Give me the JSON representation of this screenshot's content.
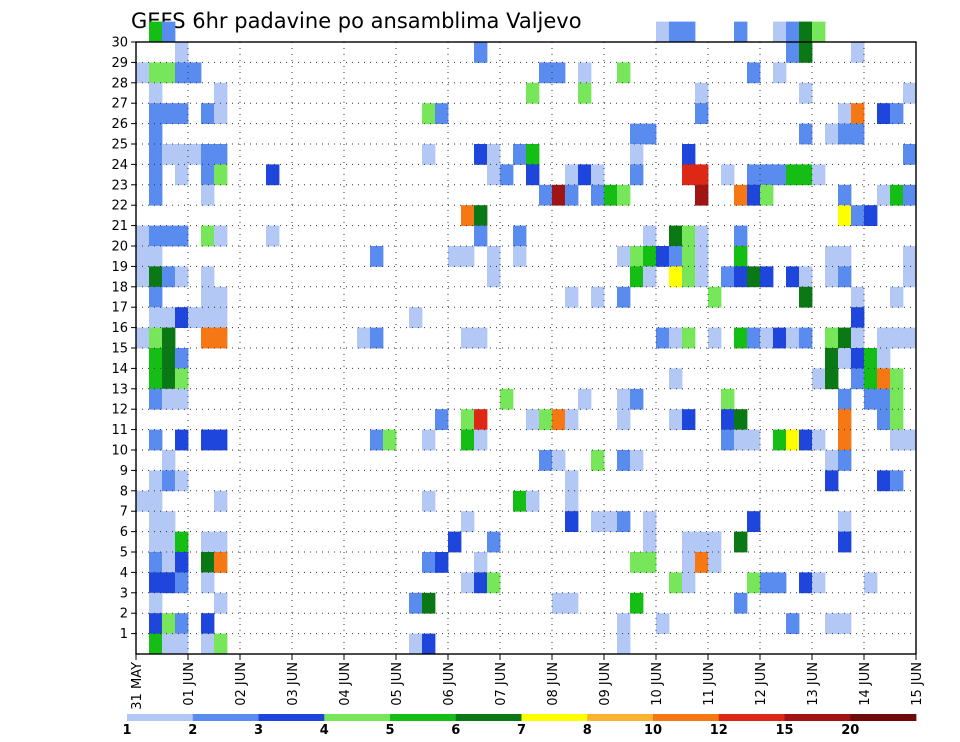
{
  "chart_data": {
    "type": "heatmap",
    "title": "GEFS 6hr padavine po ansamblima Valjevo",
    "xlabel": "",
    "ylabel": "",
    "x_tick_labels": [
      "31 MAY",
      "01 JUN",
      "02 JUN",
      "03 JUN",
      "04 JUN",
      "05 JUN",
      "06 JUN",
      "07 JUN",
      "08 JUN",
      "09 JUN",
      "10 JUN",
      "11 JUN",
      "12 JUN",
      "13 JUN",
      "14 JUN",
      "15 JUN"
    ],
    "y_range": [
      0,
      30
    ],
    "y_ticks": [
      1,
      2,
      3,
      4,
      5,
      6,
      7,
      8,
      9,
      10,
      11,
      12,
      13,
      14,
      15,
      16,
      17,
      18,
      19,
      20,
      21,
      22,
      23,
      24,
      25,
      26,
      27,
      28,
      29,
      30
    ],
    "x_steps_per_day": 4,
    "grid": true,
    "colorbar": {
      "labels": [
        "1",
        "2",
        "3",
        "4",
        "5",
        "6",
        "7",
        "8",
        "10",
        "12",
        "15",
        "20"
      ],
      "colors": [
        "#b4c8f5",
        "#5a8cf0",
        "#1e46dc",
        "#78e65a",
        "#14be14",
        "#0a7814",
        "#ffff00",
        "#fab432",
        "#f57814",
        "#dc2814",
        "#a01414",
        "#6e0a0a"
      ]
    },
    "cells": [
      [
        30,
        1,
        4
      ],
      [
        30,
        2,
        1
      ],
      [
        30,
        40,
        0
      ],
      [
        30,
        41,
        1
      ],
      [
        30,
        42,
        1
      ],
      [
        30,
        46,
        1
      ],
      [
        30,
        49,
        0
      ],
      [
        30,
        50,
        1
      ],
      [
        30,
        51,
        5
      ],
      [
        30,
        52,
        3
      ],
      [
        29,
        3,
        0
      ],
      [
        29,
        26,
        1
      ],
      [
        29,
        50,
        1
      ],
      [
        29,
        51,
        5
      ],
      [
        29,
        55,
        0
      ],
      [
        28,
        0,
        0
      ],
      [
        28,
        1,
        3
      ],
      [
        28,
        2,
        3
      ],
      [
        28,
        3,
        1
      ],
      [
        28,
        4,
        1
      ],
      [
        28,
        31,
        1
      ],
      [
        28,
        32,
        1
      ],
      [
        28,
        34,
        0
      ],
      [
        28,
        37,
        3
      ],
      [
        28,
        47,
        1
      ],
      [
        28,
        49,
        0
      ],
      [
        27,
        1,
        0
      ],
      [
        27,
        6,
        0
      ],
      [
        27,
        30,
        3
      ],
      [
        27,
        34,
        3
      ],
      [
        27,
        43,
        0
      ],
      [
        27,
        51,
        0
      ],
      [
        27,
        59,
        0
      ],
      [
        26,
        1,
        1
      ],
      [
        26,
        2,
        1
      ],
      [
        26,
        3,
        1
      ],
      [
        26,
        5,
        1
      ],
      [
        26,
        6,
        0
      ],
      [
        26,
        22,
        3
      ],
      [
        26,
        23,
        1
      ],
      [
        26,
        43,
        1
      ],
      [
        26,
        54,
        0
      ],
      [
        26,
        55,
        8
      ],
      [
        26,
        57,
        2
      ],
      [
        26,
        58,
        1
      ],
      [
        25,
        1,
        1
      ],
      [
        25,
        38,
        1
      ],
      [
        25,
        39,
        1
      ],
      [
        25,
        51,
        1
      ],
      [
        25,
        53,
        0
      ],
      [
        25,
        54,
        1
      ],
      [
        25,
        55,
        1
      ],
      [
        24,
        1,
        1
      ],
      [
        24,
        2,
        0
      ],
      [
        24,
        3,
        0
      ],
      [
        24,
        4,
        0
      ],
      [
        24,
        5,
        1
      ],
      [
        24,
        6,
        1
      ],
      [
        24,
        22,
        0
      ],
      [
        24,
        26,
        2
      ],
      [
        24,
        27,
        0
      ],
      [
        24,
        29,
        1
      ],
      [
        24,
        30,
        4
      ],
      [
        24,
        38,
        0
      ],
      [
        24,
        42,
        2
      ],
      [
        24,
        59,
        1
      ],
      [
        23,
        1,
        1
      ],
      [
        23,
        3,
        0
      ],
      [
        23,
        5,
        1
      ],
      [
        23,
        6,
        3
      ],
      [
        23,
        10,
        2
      ],
      [
        23,
        27,
        0
      ],
      [
        23,
        28,
        1
      ],
      [
        23,
        30,
        2
      ],
      [
        23,
        33,
        0
      ],
      [
        23,
        34,
        2
      ],
      [
        23,
        35,
        0
      ],
      [
        23,
        38,
        1
      ],
      [
        23,
        42,
        9
      ],
      [
        23,
        43,
        9
      ],
      [
        23,
        45,
        0
      ],
      [
        23,
        47,
        1
      ],
      [
        23,
        48,
        1
      ],
      [
        23,
        49,
        1
      ],
      [
        23,
        50,
        4
      ],
      [
        23,
        51,
        4
      ],
      [
        23,
        52,
        0
      ],
      [
        22,
        1,
        1
      ],
      [
        22,
        5,
        0
      ],
      [
        22,
        31,
        1
      ],
      [
        22,
        32,
        10
      ],
      [
        22,
        33,
        1
      ],
      [
        22,
        35,
        1
      ],
      [
        22,
        36,
        4
      ],
      [
        22,
        37,
        3
      ],
      [
        22,
        43,
        10
      ],
      [
        22,
        46,
        8
      ],
      [
        22,
        47,
        2
      ],
      [
        22,
        48,
        3
      ],
      [
        22,
        54,
        1
      ],
      [
        22,
        57,
        0
      ],
      [
        22,
        58,
        4
      ],
      [
        22,
        59,
        1
      ],
      [
        21,
        25,
        8
      ],
      [
        21,
        26,
        5
      ],
      [
        21,
        54,
        6
      ],
      [
        21,
        55,
        1
      ],
      [
        21,
        56,
        2
      ],
      [
        20,
        0,
        0
      ],
      [
        20,
        1,
        1
      ],
      [
        20,
        2,
        1
      ],
      [
        20,
        3,
        1
      ],
      [
        20,
        5,
        3
      ],
      [
        20,
        6,
        0
      ],
      [
        20,
        10,
        0
      ],
      [
        20,
        26,
        1
      ],
      [
        20,
        29,
        1
      ],
      [
        20,
        39,
        0
      ],
      [
        20,
        41,
        5
      ],
      [
        20,
        42,
        3
      ],
      [
        20,
        43,
        0
      ],
      [
        20,
        46,
        1
      ],
      [
        19,
        0,
        0
      ],
      [
        19,
        1,
        0
      ],
      [
        19,
        18,
        1
      ],
      [
        19,
        24,
        0
      ],
      [
        19,
        25,
        0
      ],
      [
        19,
        27,
        0
      ],
      [
        19,
        29,
        0
      ],
      [
        19,
        37,
        0
      ],
      [
        19,
        38,
        3
      ],
      [
        19,
        39,
        4
      ],
      [
        19,
        40,
        2
      ],
      [
        19,
        41,
        1
      ],
      [
        19,
        42,
        3
      ],
      [
        19,
        43,
        0
      ],
      [
        19,
        46,
        4
      ],
      [
        19,
        53,
        0
      ],
      [
        19,
        54,
        0
      ],
      [
        19,
        59,
        0
      ],
      [
        18,
        0,
        0
      ],
      [
        18,
        1,
        5
      ],
      [
        18,
        2,
        1
      ],
      [
        18,
        3,
        0
      ],
      [
        18,
        5,
        0
      ],
      [
        18,
        27,
        0
      ],
      [
        18,
        38,
        4
      ],
      [
        18,
        39,
        0
      ],
      [
        18,
        41,
        6
      ],
      [
        18,
        42,
        3
      ],
      [
        18,
        43,
        0
      ],
      [
        18,
        45,
        1
      ],
      [
        18,
        46,
        2
      ],
      [
        18,
        47,
        5
      ],
      [
        18,
        48,
        2
      ],
      [
        18,
        50,
        2
      ],
      [
        18,
        51,
        0
      ],
      [
        18,
        53,
        0
      ],
      [
        18,
        54,
        1
      ],
      [
        18,
        59,
        0
      ],
      [
        17,
        1,
        1
      ],
      [
        17,
        5,
        0
      ],
      [
        17,
        6,
        0
      ],
      [
        17,
        33,
        0
      ],
      [
        17,
        35,
        0
      ],
      [
        17,
        37,
        1
      ],
      [
        17,
        44,
        3
      ],
      [
        17,
        51,
        5
      ],
      [
        17,
        55,
        0
      ],
      [
        17,
        58,
        0
      ],
      [
        16,
        1,
        0
      ],
      [
        16,
        2,
        0
      ],
      [
        16,
        3,
        2
      ],
      [
        16,
        4,
        0
      ],
      [
        16,
        5,
        0
      ],
      [
        16,
        6,
        0
      ],
      [
        16,
        21,
        0
      ],
      [
        16,
        55,
        2
      ],
      [
        15,
        0,
        0
      ],
      [
        15,
        1,
        3
      ],
      [
        15,
        2,
        5
      ],
      [
        15,
        5,
        8
      ],
      [
        15,
        6,
        8
      ],
      [
        15,
        17,
        0
      ],
      [
        15,
        18,
        1
      ],
      [
        15,
        25,
        0
      ],
      [
        15,
        26,
        0
      ],
      [
        15,
        40,
        1
      ],
      [
        15,
        41,
        0
      ],
      [
        15,
        42,
        3
      ],
      [
        15,
        44,
        0
      ],
      [
        15,
        46,
        4
      ],
      [
        15,
        47,
        1
      ],
      [
        15,
        48,
        0
      ],
      [
        15,
        49,
        2
      ],
      [
        15,
        50,
        0
      ],
      [
        15,
        51,
        1
      ],
      [
        15,
        53,
        3
      ],
      [
        15,
        54,
        5
      ],
      [
        15,
        55,
        0
      ],
      [
        15,
        57,
        0
      ],
      [
        15,
        58,
        0
      ],
      [
        15,
        59,
        0
      ],
      [
        14,
        1,
        4
      ],
      [
        14,
        2,
        5
      ],
      [
        14,
        3,
        1
      ],
      [
        14,
        53,
        5
      ],
      [
        14,
        54,
        0
      ],
      [
        14,
        55,
        2
      ],
      [
        14,
        56,
        4
      ],
      [
        14,
        57,
        0
      ],
      [
        13,
        1,
        4
      ],
      [
        13,
        2,
        5
      ],
      [
        13,
        3,
        3
      ],
      [
        13,
        41,
        0
      ],
      [
        13,
        52,
        0
      ],
      [
        13,
        53,
        5
      ],
      [
        13,
        55,
        1
      ],
      [
        13,
        56,
        4
      ],
      [
        13,
        57,
        8
      ],
      [
        13,
        58,
        3
      ],
      [
        12,
        1,
        1
      ],
      [
        12,
        2,
        0
      ],
      [
        12,
        3,
        0
      ],
      [
        12,
        28,
        3
      ],
      [
        12,
        34,
        0
      ],
      [
        12,
        37,
        0
      ],
      [
        12,
        38,
        1
      ],
      [
        12,
        45,
        3
      ],
      [
        12,
        54,
        1
      ],
      [
        12,
        56,
        1
      ],
      [
        12,
        57,
        1
      ],
      [
        12,
        58,
        3
      ],
      [
        11,
        23,
        1
      ],
      [
        11,
        25,
        3
      ],
      [
        11,
        26,
        9
      ],
      [
        11,
        30,
        0
      ],
      [
        11,
        31,
        3
      ],
      [
        11,
        32,
        8
      ],
      [
        11,
        33,
        0
      ],
      [
        11,
        37,
        0
      ],
      [
        11,
        41,
        0
      ],
      [
        11,
        42,
        2
      ],
      [
        11,
        45,
        2
      ],
      [
        11,
        46,
        5
      ],
      [
        11,
        54,
        8
      ],
      [
        11,
        57,
        1
      ],
      [
        11,
        58,
        3
      ],
      [
        10,
        1,
        1
      ],
      [
        10,
        3,
        2
      ],
      [
        10,
        5,
        2
      ],
      [
        10,
        6,
        2
      ],
      [
        10,
        18,
        1
      ],
      [
        10,
        19,
        3
      ],
      [
        10,
        22,
        0
      ],
      [
        10,
        25,
        4
      ],
      [
        10,
        26,
        0
      ],
      [
        10,
        45,
        1
      ],
      [
        10,
        46,
        0
      ],
      [
        10,
        47,
        0
      ],
      [
        10,
        49,
        4
      ],
      [
        10,
        50,
        6
      ],
      [
        10,
        51,
        2
      ],
      [
        10,
        52,
        0
      ],
      [
        10,
        54,
        8
      ],
      [
        10,
        58,
        0
      ],
      [
        10,
        59,
        0
      ],
      [
        9,
        2,
        0
      ],
      [
        9,
        31,
        1
      ],
      [
        9,
        32,
        0
      ],
      [
        9,
        35,
        3
      ],
      [
        9,
        37,
        1
      ],
      [
        9,
        38,
        0
      ],
      [
        9,
        53,
        0
      ],
      [
        9,
        54,
        1
      ],
      [
        8,
        1,
        0
      ],
      [
        8,
        2,
        1
      ],
      [
        8,
        3,
        0
      ],
      [
        8,
        33,
        0
      ],
      [
        8,
        53,
        2
      ],
      [
        8,
        57,
        2
      ],
      [
        8,
        58,
        1
      ],
      [
        7,
        0,
        0
      ],
      [
        7,
        1,
        0
      ],
      [
        7,
        6,
        0
      ],
      [
        7,
        22,
        0
      ],
      [
        7,
        29,
        4
      ],
      [
        7,
        30,
        0
      ],
      [
        7,
        33,
        0
      ],
      [
        6,
        1,
        0
      ],
      [
        6,
        2,
        0
      ],
      [
        6,
        25,
        0
      ],
      [
        6,
        33,
        2
      ],
      [
        6,
        35,
        0
      ],
      [
        6,
        36,
        0
      ],
      [
        6,
        37,
        1
      ],
      [
        6,
        39,
        0
      ],
      [
        6,
        47,
        2
      ],
      [
        6,
        54,
        0
      ],
      [
        5,
        1,
        0
      ],
      [
        5,
        2,
        0
      ],
      [
        5,
        3,
        4
      ],
      [
        5,
        5,
        0
      ],
      [
        5,
        6,
        0
      ],
      [
        5,
        24,
        2
      ],
      [
        5,
        27,
        1
      ],
      [
        5,
        39,
        0
      ],
      [
        5,
        42,
        0
      ],
      [
        5,
        43,
        0
      ],
      [
        5,
        44,
        0
      ],
      [
        5,
        46,
        5
      ],
      [
        5,
        54,
        2
      ],
      [
        4,
        1,
        1
      ],
      [
        4,
        2,
        0
      ],
      [
        4,
        3,
        2
      ],
      [
        4,
        5,
        5
      ],
      [
        4,
        6,
        8
      ],
      [
        4,
        22,
        1
      ],
      [
        4,
        23,
        2
      ],
      [
        4,
        26,
        0
      ],
      [
        4,
        38,
        3
      ],
      [
        4,
        39,
        3
      ],
      [
        4,
        42,
        0
      ],
      [
        4,
        43,
        8
      ],
      [
        4,
        44,
        0
      ],
      [
        3,
        1,
        2
      ],
      [
        3,
        2,
        2
      ],
      [
        3,
        3,
        1
      ],
      [
        3,
        5,
        0
      ],
      [
        3,
        25,
        0
      ],
      [
        3,
        26,
        2
      ],
      [
        3,
        27,
        3
      ],
      [
        3,
        41,
        3
      ],
      [
        3,
        42,
        0
      ],
      [
        3,
        47,
        3
      ],
      [
        3,
        48,
        1
      ],
      [
        3,
        49,
        1
      ],
      [
        3,
        51,
        2
      ],
      [
        3,
        52,
        0
      ],
      [
        3,
        56,
        0
      ],
      [
        2,
        1,
        0
      ],
      [
        2,
        6,
        0
      ],
      [
        2,
        21,
        1
      ],
      [
        2,
        22,
        5
      ],
      [
        2,
        32,
        0
      ],
      [
        2,
        33,
        0
      ],
      [
        2,
        38,
        4
      ],
      [
        2,
        46,
        1
      ],
      [
        1,
        1,
        2
      ],
      [
        1,
        2,
        3
      ],
      [
        1,
        3,
        1
      ],
      [
        1,
        5,
        2
      ],
      [
        1,
        37,
        0
      ],
      [
        1,
        40,
        0
      ],
      [
        1,
        50,
        1
      ],
      [
        1,
        53,
        0
      ],
      [
        1,
        54,
        0
      ],
      [
        0,
        1,
        4
      ],
      [
        0,
        2,
        0
      ],
      [
        0,
        3,
        0
      ],
      [
        0,
        5,
        0
      ],
      [
        0,
        6,
        3
      ],
      [
        0,
        21,
        0
      ],
      [
        0,
        22,
        2
      ],
      [
        0,
        37,
        0
      ]
    ]
  }
}
